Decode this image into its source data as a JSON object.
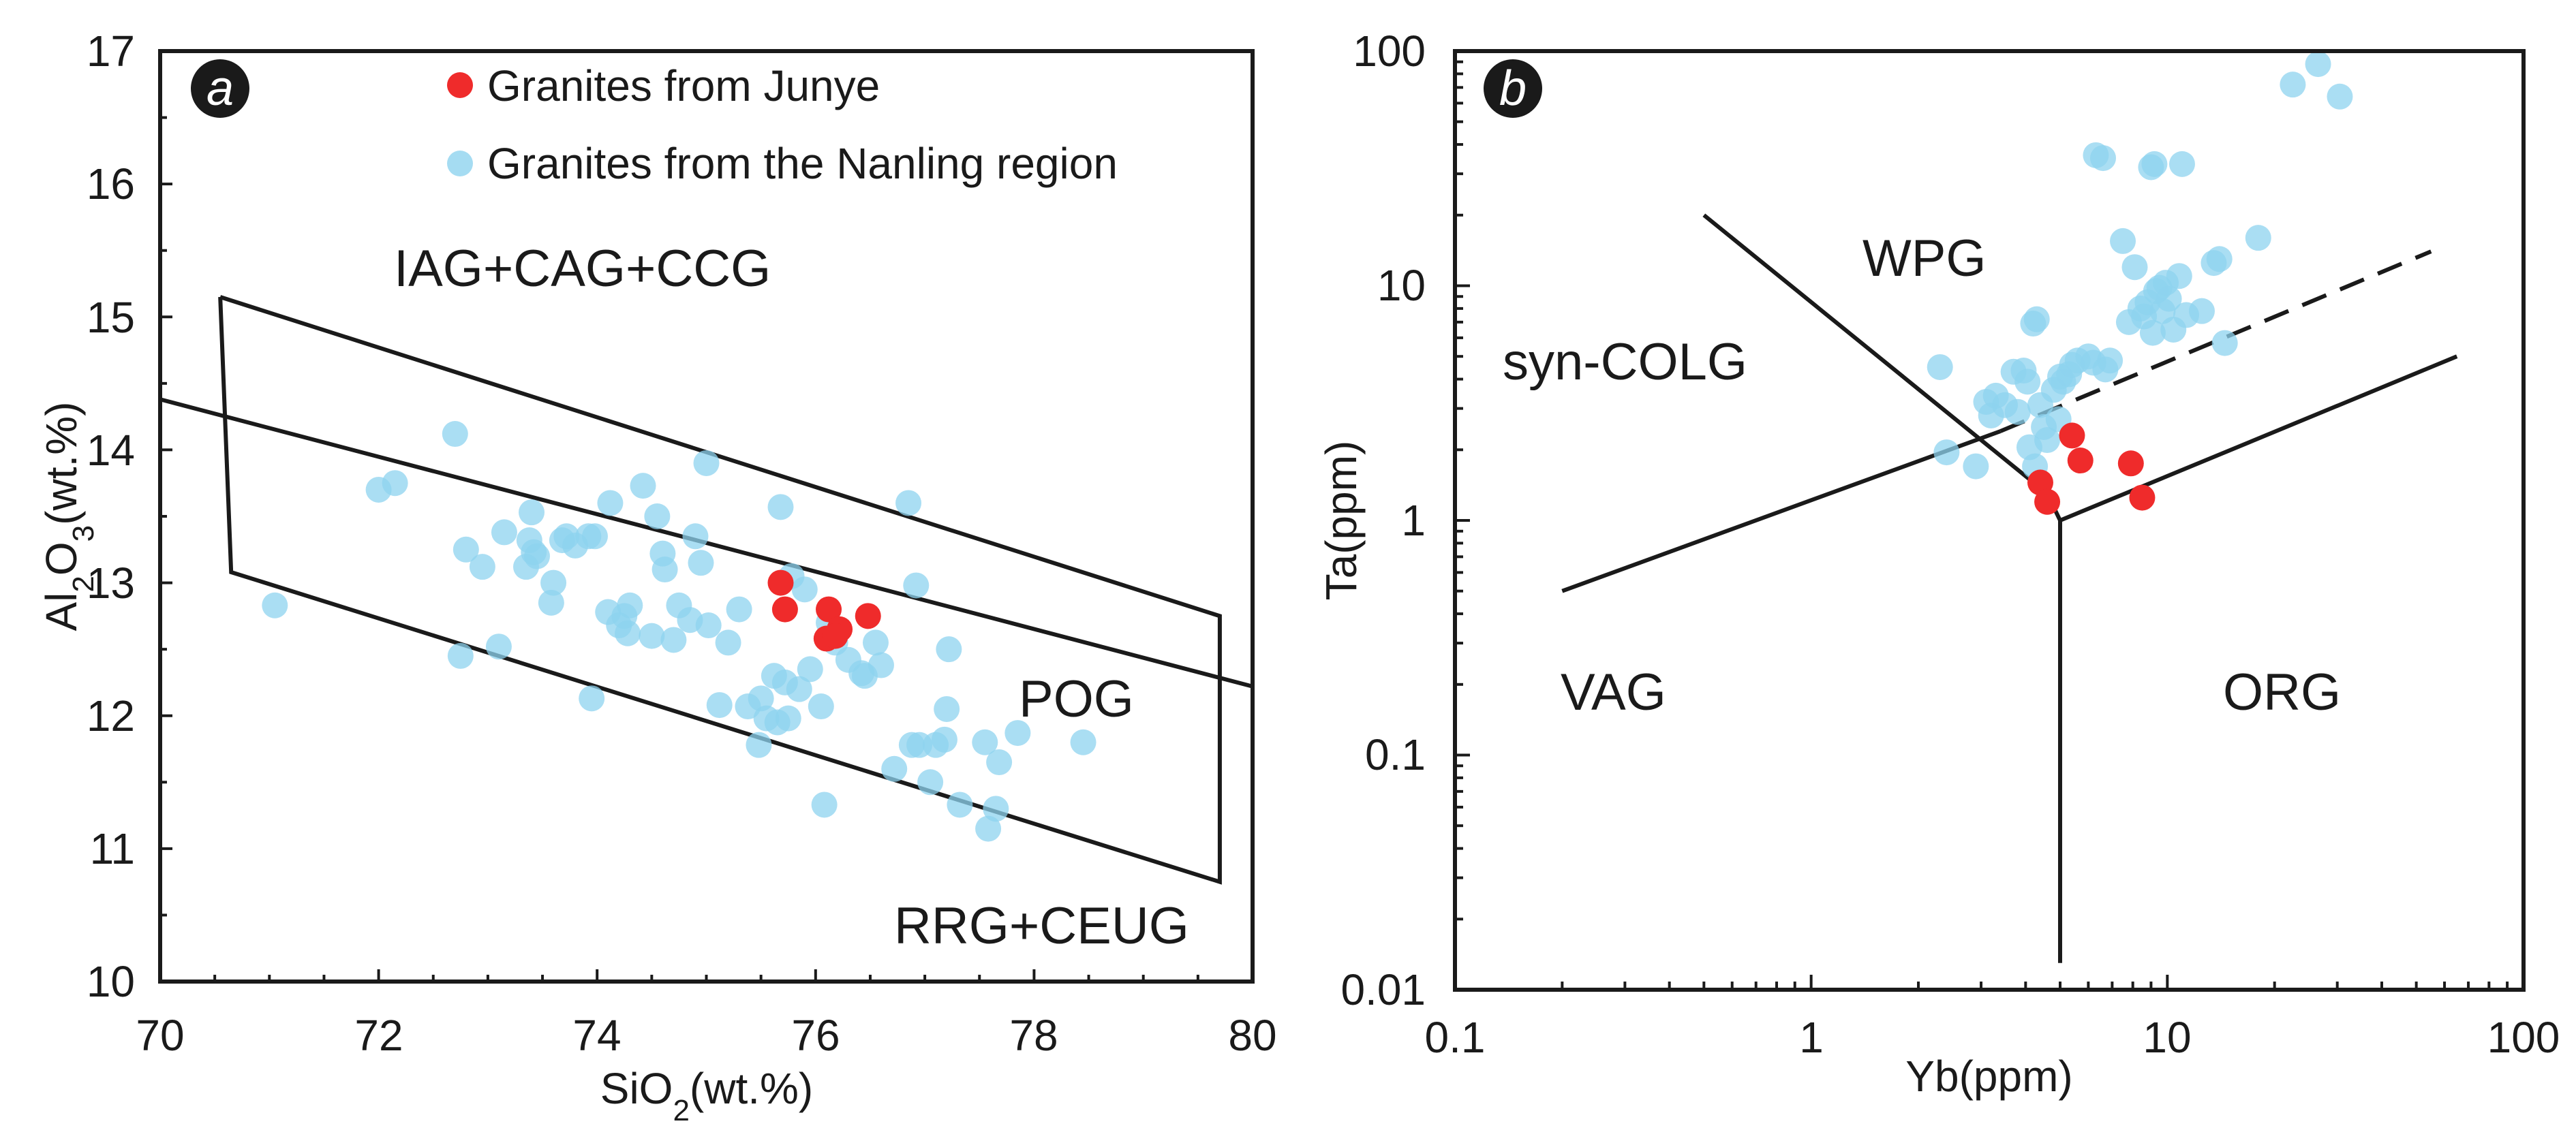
{
  "colors": {
    "junye": "#ef2b2b",
    "nanling": "#8ed3ef",
    "ink": "#1a1a1a"
  },
  "legend": {
    "junye": "Granites from Junye",
    "nanling": "Granites from the Nanling region"
  },
  "chart_data": [
    {
      "panel": "a",
      "type": "scatter",
      "xlabel": "SiO2(wt.%)",
      "ylabel": "Al2O3(wt.%)",
      "xlim": [
        70,
        80
      ],
      "ylim": [
        10,
        17
      ],
      "x_ticks": [
        "70",
        "72",
        "74",
        "76",
        "78",
        "80"
      ],
      "y_ticks": [
        "10",
        "11",
        "12",
        "13",
        "14",
        "15",
        "16",
        "17"
      ],
      "legend_position": "top-center",
      "region_labels": {
        "top": "IAG+CAG+CCG",
        "middle": "POG",
        "bottom": "RRG+CEUG"
      },
      "boundaries": [
        {
          "points": [
            [
              70.0,
              14.38
            ],
            [
              80.0,
              12.22
            ]
          ]
        },
        {
          "points": [
            [
              70.55,
              15.15
            ],
            [
              79.7,
              12.75
            ],
            [
              79.7,
              10.75
            ],
            [
              70.65,
              13.08
            ],
            [
              70.55,
              15.15
            ]
          ]
        }
      ],
      "series": [
        {
          "name": "Granites from Junye",
          "color": "#ef2b2b",
          "points": [
            [
              75.68,
              13.0
            ],
            [
              75.72,
              12.8
            ],
            [
              76.12,
              12.8
            ],
            [
              76.48,
              12.75
            ],
            [
              76.22,
              12.65
            ],
            [
              76.1,
              12.58
            ],
            [
              76.18,
              12.6
            ]
          ]
        },
        {
          "name": "Granites from the Nanling region",
          "color": "#8ed3ef",
          "points": [
            [
              71.05,
              12.83
            ],
            [
              72.0,
              13.7
            ],
            [
              72.15,
              13.75
            ],
            [
              72.7,
              14.12
            ],
            [
              72.75,
              12.45
            ],
            [
              72.8,
              13.25
            ],
            [
              72.95,
              13.12
            ],
            [
              73.1,
              12.52
            ],
            [
              73.15,
              13.38
            ],
            [
              73.35,
              13.12
            ],
            [
              73.38,
              13.32
            ],
            [
              73.4,
              13.53
            ],
            [
              73.42,
              13.23
            ],
            [
              73.45,
              13.2
            ],
            [
              73.58,
              12.85
            ],
            [
              73.6,
              13.0
            ],
            [
              73.68,
              13.32
            ],
            [
              73.72,
              13.35
            ],
            [
              73.8,
              13.28
            ],
            [
              73.92,
              13.35
            ],
            [
              73.95,
              12.13
            ],
            [
              73.98,
              13.35
            ],
            [
              74.1,
              12.78
            ],
            [
              74.12,
              13.6
            ],
            [
              74.2,
              12.68
            ],
            [
              74.25,
              12.75
            ],
            [
              74.28,
              12.62
            ],
            [
              74.3,
              12.83
            ],
            [
              74.42,
              13.73
            ],
            [
              74.5,
              12.6
            ],
            [
              74.55,
              13.5
            ],
            [
              74.6,
              13.22
            ],
            [
              74.62,
              13.1
            ],
            [
              74.7,
              12.57
            ],
            [
              74.75,
              12.83
            ],
            [
              74.85,
              12.72
            ],
            [
              74.9,
              13.35
            ],
            [
              74.95,
              13.15
            ],
            [
              75.0,
              13.9
            ],
            [
              75.02,
              12.68
            ],
            [
              75.12,
              12.08
            ],
            [
              75.2,
              12.55
            ],
            [
              75.3,
              12.8
            ],
            [
              75.38,
              12.07
            ],
            [
              75.48,
              11.78
            ],
            [
              75.5,
              12.13
            ],
            [
              75.55,
              11.98
            ],
            [
              75.62,
              12.3
            ],
            [
              75.65,
              11.95
            ],
            [
              75.68,
              13.57
            ],
            [
              75.72,
              12.25
            ],
            [
              75.75,
              11.98
            ],
            [
              75.78,
              13.05
            ],
            [
              75.85,
              12.2
            ],
            [
              75.9,
              12.95
            ],
            [
              75.95,
              12.35
            ],
            [
              76.05,
              12.07
            ],
            [
              76.08,
              11.33
            ],
            [
              76.12,
              12.7
            ],
            [
              76.18,
              12.55
            ],
            [
              76.3,
              12.42
            ],
            [
              76.42,
              12.32
            ],
            [
              76.45,
              12.3
            ],
            [
              76.55,
              12.55
            ],
            [
              76.6,
              12.38
            ],
            [
              76.72,
              11.6
            ],
            [
              76.85,
              13.6
            ],
            [
              76.88,
              11.78
            ],
            [
              76.92,
              12.98
            ],
            [
              76.95,
              11.78
            ],
            [
              77.05,
              11.5
            ],
            [
              77.1,
              11.78
            ],
            [
              77.18,
              11.82
            ],
            [
              77.2,
              12.05
            ],
            [
              77.22,
              12.5
            ],
            [
              77.32,
              11.33
            ],
            [
              77.55,
              11.8
            ],
            [
              77.58,
              11.15
            ],
            [
              77.65,
              11.3
            ],
            [
              77.68,
              11.65
            ],
            [
              77.85,
              11.87
            ],
            [
              78.45,
              11.8
            ]
          ]
        }
      ]
    },
    {
      "panel": "b",
      "type": "scatter",
      "xlabel": "Yb(ppm)",
      "ylabel": "Ta(ppm)",
      "xscale": "log",
      "yscale": "log",
      "xlim": [
        0.1,
        100
      ],
      "ylim": [
        0.01,
        100
      ],
      "x_ticks": [
        "0.1",
        "1",
        "10",
        "100"
      ],
      "y_ticks": [
        "0.01",
        "0.1",
        "1",
        "10",
        "100"
      ],
      "region_labels": {
        "wpg": "WPG",
        "syn_colg": "syn-COLG",
        "vag": "VAG",
        "org": "ORG"
      },
      "boundaries": [
        {
          "style": "solid",
          "points": [
            [
              0.5,
              20.0
            ],
            [
              4.6,
              1.3
            ],
            [
              5.0,
              1.0
            ]
          ]
        },
        {
          "style": "solid",
          "points": [
            [
              0.2,
              0.5
            ],
            [
              3.4,
              2.4
            ]
          ]
        },
        {
          "style": "dashed",
          "points": [
            [
              3.4,
              2.4
            ],
            [
              55.0,
              14.0
            ]
          ]
        },
        {
          "style": "solid",
          "points": [
            [
              5.0,
              1.0
            ],
            [
              65.0,
              5.0
            ]
          ]
        },
        {
          "style": "solid",
          "points": [
            [
              5.0,
              1.0
            ],
            [
              5.0,
              0.013
            ]
          ]
        }
      ],
      "series": [
        {
          "name": "Granites from Junye",
          "color": "#ef2b2b",
          "points": [
            [
              5.4,
              2.3
            ],
            [
              5.7,
              1.8
            ],
            [
              7.9,
              1.75
            ],
            [
              4.4,
              1.45
            ],
            [
              4.6,
              1.2
            ],
            [
              8.5,
              1.25
            ]
          ]
        },
        {
          "name": "Granites from the Nanling region",
          "color": "#8ed3ef",
          "points": [
            [
              2.3,
              4.5
            ],
            [
              2.4,
              1.95
            ],
            [
              2.9,
              1.7
            ],
            [
              3.1,
              3.2
            ],
            [
              3.2,
              2.8
            ],
            [
              3.3,
              3.4
            ],
            [
              3.5,
              3.1
            ],
            [
              3.7,
              4.3
            ],
            [
              3.8,
              2.9
            ],
            [
              3.95,
              4.35
            ],
            [
              4.05,
              3.9
            ],
            [
              4.1,
              2.05
            ],
            [
              4.2,
              6.9
            ],
            [
              4.25,
              1.7
            ],
            [
              4.3,
              7.2
            ],
            [
              4.4,
              3.1
            ],
            [
              4.5,
              2.5
            ],
            [
              4.6,
              2.2
            ],
            [
              4.8,
              3.6
            ],
            [
              4.95,
              2.7
            ],
            [
              5.0,
              4.1
            ],
            [
              5.1,
              3.9
            ],
            [
              5.3,
              4.2
            ],
            [
              5.4,
              4.6
            ],
            [
              5.6,
              4.8
            ],
            [
              6.0,
              5.0
            ],
            [
              6.2,
              4.7
            ],
            [
              6.3,
              36.0
            ],
            [
              6.6,
              35.0
            ],
            [
              6.7,
              4.4
            ],
            [
              6.9,
              4.8
            ],
            [
              7.5,
              15.5
            ],
            [
              7.8,
              7.0
            ],
            [
              8.1,
              12.0
            ],
            [
              8.4,
              8.0
            ],
            [
              8.6,
              7.4
            ],
            [
              8.8,
              8.5
            ],
            [
              9.0,
              32.0
            ],
            [
              9.1,
              6.3
            ],
            [
              9.2,
              33.0
            ],
            [
              9.3,
              9.5
            ],
            [
              9.5,
              9.8
            ],
            [
              9.7,
              7.8
            ],
            [
              9.9,
              10.3
            ],
            [
              10.1,
              8.8
            ],
            [
              10.4,
              6.5
            ],
            [
              10.8,
              11.0
            ],
            [
              11.0,
              33.0
            ],
            [
              11.3,
              7.5
            ],
            [
              12.5,
              7.8
            ],
            [
              13.5,
              12.5
            ],
            [
              14.0,
              13.0
            ],
            [
              14.5,
              5.7
            ],
            [
              18.0,
              16.0
            ],
            [
              22.5,
              72.0
            ],
            [
              26.5,
              88.0
            ],
            [
              30.5,
              64.0
            ]
          ]
        }
      ]
    }
  ]
}
